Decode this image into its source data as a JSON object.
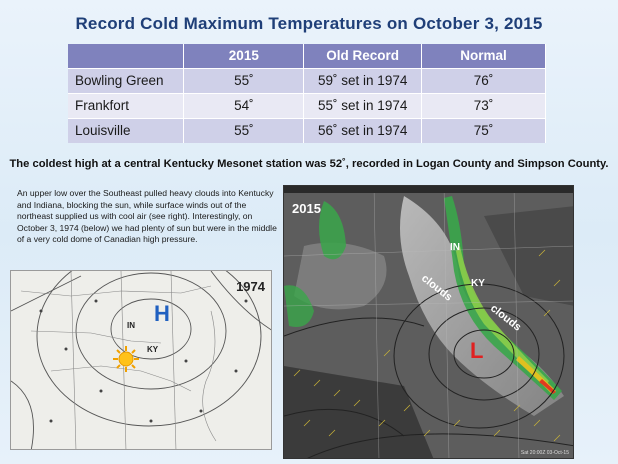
{
  "title": "Record Cold Maximum Temperatures on October 3, 2015",
  "table": {
    "headers": [
      "",
      "2015",
      "Old Record",
      "Normal"
    ],
    "rows": [
      {
        "city": "Bowling Green",
        "v2015": "55˚",
        "old": "59˚ set in 1974",
        "normal": "76˚"
      },
      {
        "city": "Frankfort",
        "v2015": "54˚",
        "old": "55˚ set in 1974",
        "normal": "73˚"
      },
      {
        "city": "Louisville",
        "v2015": "55˚",
        "old": "56˚ set in 1974",
        "normal": "75˚"
      }
    ]
  },
  "coldest_note": "The coldest high at a central Kentucky Mesonet station was 52˚, recorded in Logan County and Simpson County.",
  "description": "An upper low over the Southeast pulled heavy clouds into Kentucky and Indiana, blocking the sun, while surface winds out of the northeast supplied us with cool air (see right). Interestingly, on October 3, 1974 (below) we had plenty of sun but were in the middle of a very cold dome of Canadian high pressure.",
  "map1974": {
    "year": "1974",
    "high_symbol": "H",
    "state_in": "IN",
    "state_ky": "KY"
  },
  "map2015": {
    "year": "2015",
    "state_in": "IN",
    "state_ky": "KY",
    "clouds_label_1": "clouds",
    "clouds_label_2": "clouds",
    "low_symbol": "L",
    "timestamp": "Sat 20:00Z 03-Oct-15"
  },
  "colors": {
    "header_bg": "#7f82bd",
    "title": "#1f3f78",
    "high": "#2060c0",
    "low": "#e02020"
  }
}
